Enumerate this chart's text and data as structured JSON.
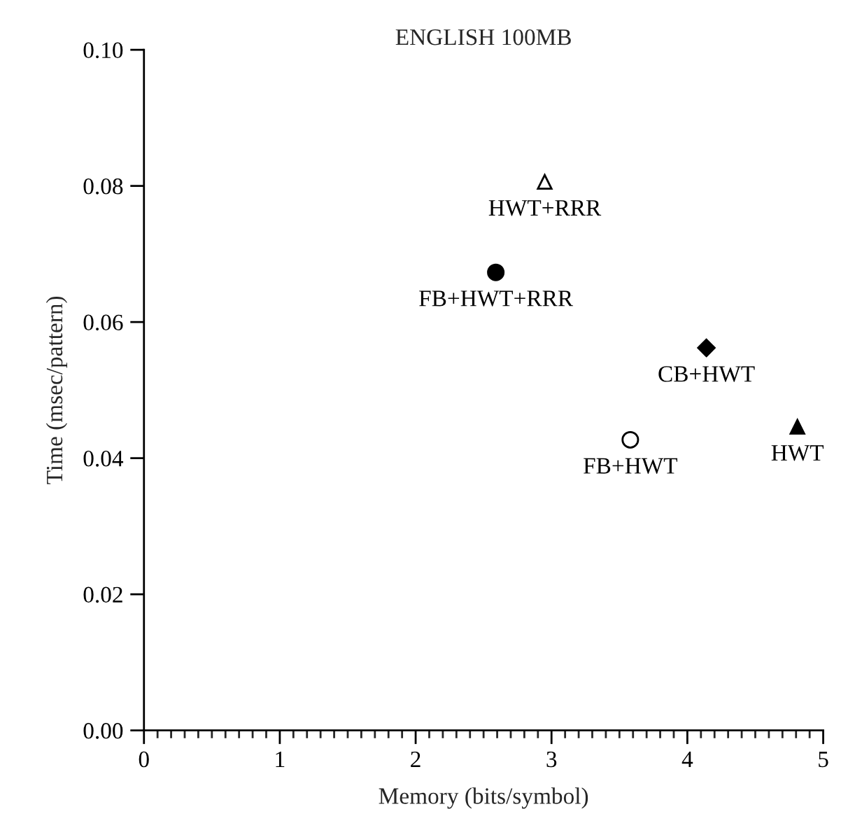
{
  "chart_data": {
    "type": "scatter",
    "title": "ENGLISH 100MB",
    "xlabel": "Memory (bits/symbol)",
    "ylabel": "Time (msec/pattern)",
    "series": [
      {
        "name": "HWT+RRR",
        "color": "#ffffff",
        "marker": "triangle",
        "x": [
          2.95
        ],
        "values": [
          0.0806
        ]
      },
      {
        "name": "FB+HWT+RRR",
        "color": "#000000",
        "marker": "circle",
        "x": [
          2.59
        ],
        "values": [
          0.0673
        ]
      },
      {
        "name": "CB+HWT",
        "color": "#000000",
        "marker": "diamond",
        "x": [
          4.14
        ],
        "values": [
          0.0562
        ]
      },
      {
        "name": "FB+HWT",
        "color": "#ffffff",
        "marker": "circle",
        "x": [
          3.58
        ],
        "values": [
          0.0427
        ]
      },
      {
        "name": "HWT",
        "color": "#000000",
        "marker": "triangle",
        "x": [
          4.81
        ],
        "values": [
          0.0446
        ]
      }
    ],
    "xlim": [
      0,
      5
    ],
    "xticks": [
      0,
      1,
      2,
      3,
      4,
      5
    ],
    "ylim": [
      0,
      0.1
    ],
    "yticks": [
      {
        "value": 0,
        "label": "0.00"
      },
      {
        "value": 0.02,
        "label": "0.02"
      },
      {
        "value": 0.04,
        "label": "0.04"
      },
      {
        "value": 0.06,
        "label": "0.06"
      },
      {
        "value": 0.08,
        "label": "0.08"
      },
      {
        "value": 0.1,
        "label": "0.10"
      }
    ],
    "grid": false,
    "legend": false
  }
}
